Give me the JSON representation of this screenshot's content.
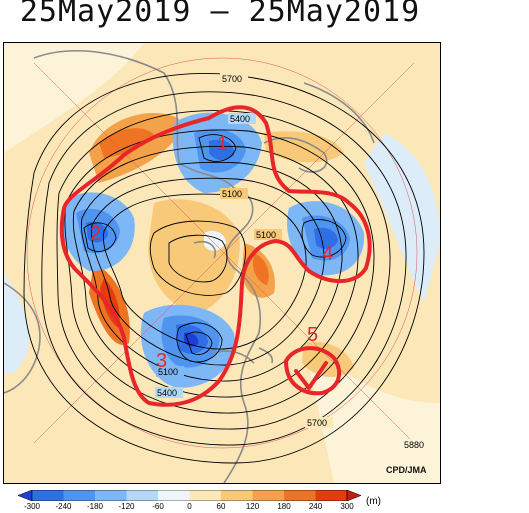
{
  "title": "25May2019 – 25May2019",
  "credit": "CPD/JMA",
  "contour_labels": [
    "5700",
    "5400",
    "5100",
    "5100",
    "5100",
    "5400",
    "5700",
    "5880"
  ],
  "annotations": [
    "1",
    "2",
    "3",
    "4",
    "5"
  ],
  "colorbar": {
    "unit": "(m)",
    "ticks": [
      "-300",
      "-240",
      "-180",
      "-120",
      "-60",
      "0",
      "60",
      "120",
      "180",
      "240",
      "300"
    ],
    "colors": [
      "#1e3fd6",
      "#2f6fe6",
      "#4f95ef",
      "#7db7f5",
      "#b4d9f8",
      "#eef6fc",
      "#fbe7b8",
      "#f8c979",
      "#f4a24a",
      "#ee7423",
      "#e53b10",
      "#cc1a10"
    ]
  },
  "colors": {
    "annotation": "#e8262a",
    "land": "#9a9a9a",
    "contour": "#000000",
    "background": "#fbe7b8"
  }
}
